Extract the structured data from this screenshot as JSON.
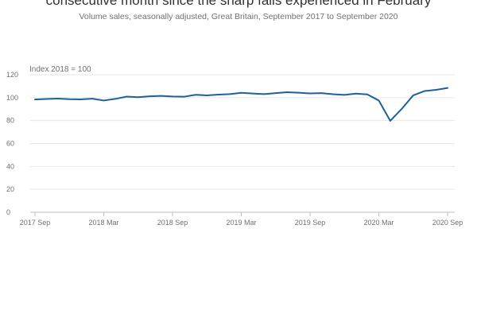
{
  "header": {
    "title": "consecutive month since the sharp falls experienced in February",
    "subtitle": "Volume sales, seasonally adjusted, Great Britain, September 2017 to September 2020"
  },
  "chart_data": {
    "type": "line",
    "unit_label": "Index 2018 = 100",
    "x": [
      "2017 Sep",
      "2017 Oct",
      "2017 Nov",
      "2017 Dec",
      "2018 Jan",
      "2018 Feb",
      "2018 Mar",
      "2018 Apr",
      "2018 May",
      "2018 Jun",
      "2018 Jul",
      "2018 Aug",
      "2018 Sep",
      "2018 Oct",
      "2018 Nov",
      "2018 Dec",
      "2019 Jan",
      "2019 Feb",
      "2019 Mar",
      "2019 Apr",
      "2019 May",
      "2019 Jun",
      "2019 Jul",
      "2019 Aug",
      "2019 Sep",
      "2019 Oct",
      "2019 Nov",
      "2019 Dec",
      "2020 Jan",
      "2020 Feb",
      "2020 Mar",
      "2020 Apr",
      "2020 May",
      "2020 Jun",
      "2020 Jul",
      "2020 Aug",
      "2020 Sep"
    ],
    "series": [
      {
        "values": [
          98.4,
          98.8,
          99.2,
          98.7,
          98.5,
          99.1,
          97.5,
          98.9,
          100.9,
          100.4,
          101.2,
          101.5,
          101.0,
          100.8,
          102.5,
          102.0,
          102.7,
          103.1,
          104.2,
          103.6,
          103.1,
          104.0,
          104.7,
          104.3,
          103.7,
          104.0,
          103.0,
          102.4,
          103.5,
          102.8,
          97.5,
          79.8,
          90.2,
          102.0,
          105.8,
          106.8,
          108.5
        ],
        "color": "#206095"
      }
    ],
    "xticks": [
      "2017 Sep",
      "2018 Mar",
      "2018 Sep",
      "2019 Mar",
      "2019 Sep",
      "2020 Mar",
      "2020 Sep"
    ],
    "yticks": [
      0,
      20,
      40,
      60,
      80,
      100,
      120
    ],
    "ylim": [
      0,
      120
    ],
    "grid": true,
    "legend": "none"
  }
}
